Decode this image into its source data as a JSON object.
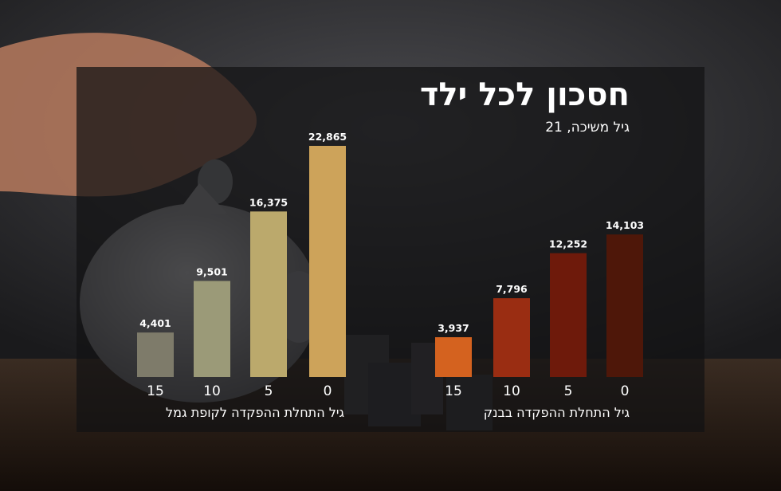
{
  "header": {
    "title": "חסכון לכל ילד",
    "subtitle": "גיל משיכה, 21"
  },
  "colors": {
    "gemel": [
      "#7e7b6a",
      "#9b9a78",
      "#bba96c",
      "#cda35a"
    ],
    "bank": [
      "#d4621f",
      "#9a2d12",
      "#6e1a0b",
      "#4e1709"
    ]
  },
  "chart_data": [
    {
      "type": "bar",
      "xlabel": "גיל התחלת ההפקדה לקופת גמל",
      "categories": [
        "15",
        "10",
        "5",
        "0"
      ],
      "values": [
        4401,
        9501,
        16375,
        22865
      ],
      "value_labels": [
        "4,401",
        "9,501",
        "16,375",
        "22,865"
      ],
      "ylim": [
        0,
        24000
      ],
      "grid": false,
      "legend": "none"
    },
    {
      "type": "bar",
      "xlabel": "גיל התחלת ההפקדה בבנק",
      "categories": [
        "15",
        "10",
        "5",
        "0"
      ],
      "values": [
        3937,
        7796,
        12252,
        14103
      ],
      "value_labels": [
        "3,937",
        "7,796",
        "12,252",
        "14,103"
      ],
      "ylim": [
        0,
        24000
      ],
      "grid": false,
      "legend": "none"
    }
  ]
}
